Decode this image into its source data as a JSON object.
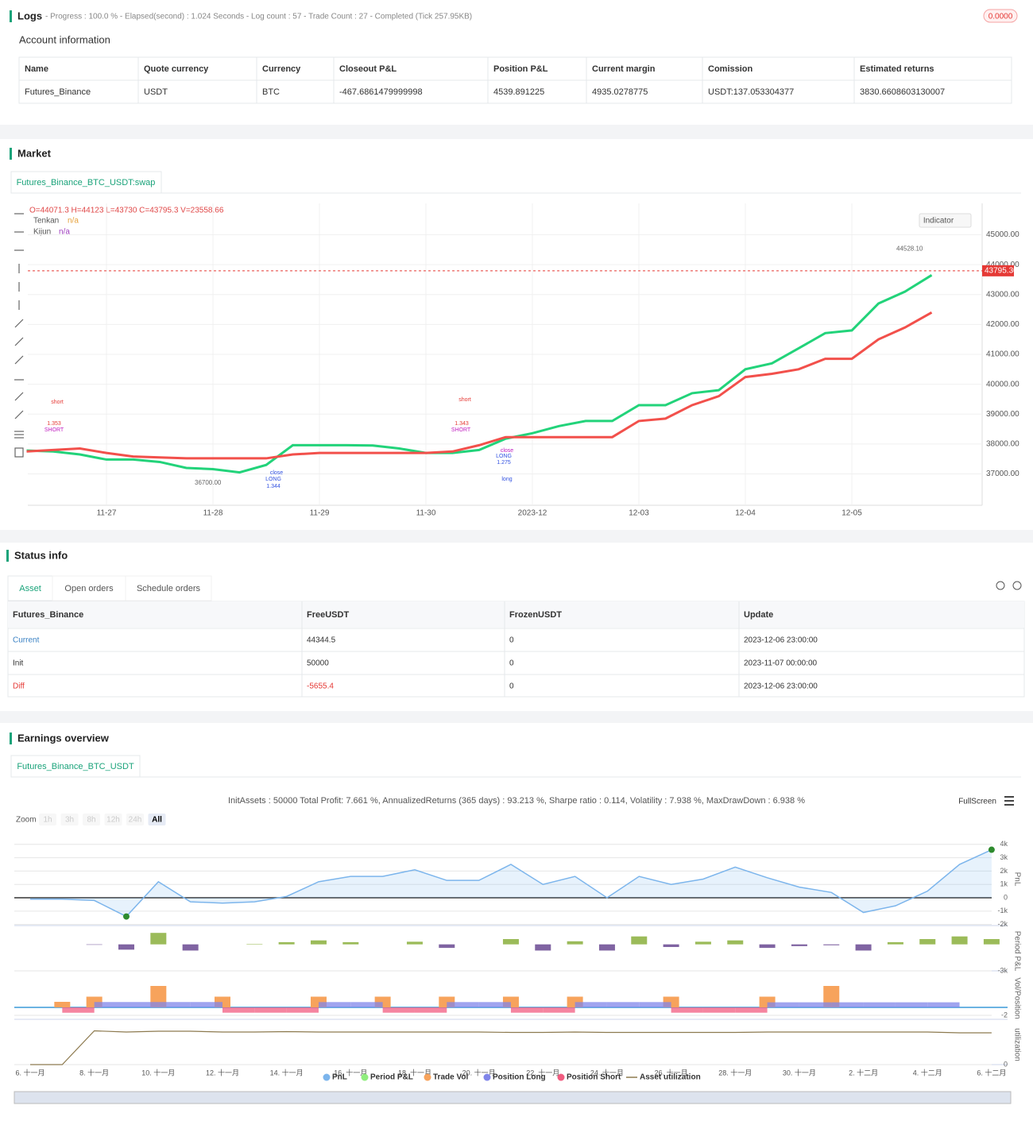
{
  "logs": {
    "title": "Logs",
    "summary": "- Progress : 100.0 % - Elapsed(second) : 1.024 Seconds - Log count : 57 - Trade Count : 27 - Completed (Tick 257.95KB)",
    "badge": "0.0000"
  },
  "account": {
    "title": "Account information",
    "columns": [
      "Name",
      "Quote currency",
      "Currency",
      "Closeout P&L",
      "Position P&L",
      "Current margin",
      "Comission",
      "Estimated returns"
    ],
    "rows": [
      [
        "Futures_Binance",
        "USDT",
        "BTC",
        "-467.6861479999998",
        "4539.891225",
        "4935.0278775",
        "USDT:137.053304377",
        "3830.6608603130007"
      ]
    ]
  },
  "market": {
    "title": "Market",
    "tab": "Futures_Binance_BTC_USDT:swap",
    "indicator_button": "Indicator",
    "ohlcv": "O=44071.3 H=44123 L=43730 C=43795.3 V=23558.66",
    "tenkan_value": "n/a",
    "kijun_value": "n/a",
    "chart": {
      "type": "line",
      "categories": [
        null,
        null,
        null,
        "11-27",
        null,
        null,
        null,
        "11-28",
        null,
        null,
        null,
        "11-29",
        null,
        null,
        null,
        "11-30",
        null,
        null,
        null,
        "2023-12",
        null,
        null,
        null,
        "12-03",
        null,
        null,
        null,
        "12-04",
        null,
        null,
        null,
        "12-05",
        null,
        null,
        null
      ],
      "series": [
        {
          "name": "Tenkan",
          "color": "#22d37a",
          "values": [
            37780,
            37750,
            37650,
            37480,
            37480,
            37400,
            37200,
            37160,
            37050,
            37300,
            37960,
            37960,
            37960,
            37950,
            37850,
            37700,
            37700,
            37800,
            38180,
            38360,
            38600,
            38770,
            38770,
            39300,
            39300,
            39700,
            39800,
            40500,
            40700,
            41200,
            41710,
            41800,
            42700,
            43100,
            43650
          ]
        },
        {
          "name": "Kijun",
          "color": "#f2504b",
          "values": [
            37750,
            37800,
            37850,
            37700,
            37580,
            37550,
            37520,
            37520,
            37520,
            37520,
            37650,
            37700,
            37700,
            37700,
            37700,
            37700,
            37750,
            37960,
            38230,
            38230,
            38230,
            38230,
            38230,
            38770,
            38850,
            39300,
            39600,
            40240,
            40350,
            40500,
            40850,
            40850,
            41500,
            41900,
            42400
          ]
        }
      ],
      "ylim": [
        35950,
        46050
      ],
      "yticks": [
        {
          "value": 45000,
          "label": "45000.00"
        },
        {
          "value": 44000,
          "label": "44000.00"
        },
        {
          "value": 43000,
          "label": "43000.00"
        },
        {
          "value": 42000,
          "label": "42000.00"
        },
        {
          "value": 41000,
          "label": "41000.00"
        },
        {
          "value": 40000,
          "label": "40000.00"
        },
        {
          "value": 39000,
          "label": "39000.00"
        },
        {
          "value": 38000,
          "label": "38000.00"
        },
        {
          "value": 37000,
          "label": "37000.00"
        }
      ],
      "last_price": {
        "value": 43795.3,
        "label": "43795.30"
      },
      "high_label": {
        "value": 44528.1,
        "label": "44528.10"
      },
      "low_label": {
        "value": 36700,
        "label": "36700.00"
      },
      "trade_labels": [
        "short",
        "1.353",
        "SHORT",
        "short",
        "1.343",
        "SHORT",
        "close",
        "LONG",
        "1.344",
        "close",
        "LONG",
        "1.275",
        "long"
      ],
      "grid": true
    }
  },
  "status": {
    "title": "Status info",
    "tabs": [
      "Asset",
      "Open orders",
      "Schedule orders"
    ],
    "columns": [
      "Futures_Binance",
      "FreeUSDT",
      "FrozenUSDT",
      "Update"
    ],
    "rows": [
      [
        "Current",
        "44344.5",
        "0",
        "2023-12-06 23:00:00"
      ],
      [
        "Init",
        "50000",
        "0",
        "2023-11-07 00:00:00"
      ],
      [
        "Diff",
        "-5655.4",
        "0",
        "2023-12-06 23:00:00"
      ]
    ]
  },
  "earnings": {
    "title": "Earnings overview",
    "tab": "Futures_Binance_BTC_USDT",
    "summary": "InitAssets : 50000 Total Profit: 7.661 %, AnnualizedReturns (365 days) : 93.213 %, Sharpe ratio : 0.114, Volatility : 7.938 %, MaxDrawDown : 6.938 %",
    "fullscreen": "FullScreen",
    "zoom_label": "Zoom",
    "zoom_buttons": [
      "1h",
      "3h",
      "8h",
      "12h",
      "24h",
      "All"
    ],
    "chart": {
      "type": "line",
      "categories": [
        "6. 十一月",
        null,
        "8. 十一月",
        null,
        "10. 十一月",
        null,
        "12. 十一月",
        null,
        "14. 十一月",
        null,
        "16. 十一月",
        null,
        "18. 十一月",
        null,
        "20. 十一月",
        null,
        "22. 十一月",
        null,
        "24. 十一月",
        null,
        "26. 十一月",
        null,
        "28. 十一月",
        null,
        "30. 十一月",
        null,
        "2. 十二月",
        null,
        "4. 十二月",
        null,
        "6. 十二月"
      ],
      "panels": [
        {
          "title": "PnL",
          "ylim": [
            -2080,
            4880
          ],
          "yticks": [
            {
              "value": 4000,
              "label": "4k"
            },
            {
              "value": 3000,
              "label": "3k"
            },
            {
              "value": 2000,
              "label": "2k"
            },
            {
              "value": 1000,
              "label": "1k"
            },
            0,
            {
              "value": -1000,
              "label": "-1k"
            },
            {
              "value": -2000,
              "label": "-2k"
            }
          ]
        },
        {
          "title": "Period P&L",
          "ylim": [
            -3000,
            1500
          ],
          "yticks": [
            {
              "value": -3000,
              "label": "-3k"
            }
          ]
        },
        {
          "title": "Vol/Position",
          "ylim": [
            -3,
            7.6
          ],
          "yticks": [
            -2
          ]
        },
        {
          "title": "utilization",
          "ylim": [
            0,
            1
          ],
          "yticks": [
            0
          ]
        }
      ],
      "series": [
        {
          "name": "PnL",
          "color": "#7cb5ec",
          "panel": 0,
          "values": [
            -100,
            -100,
            -200,
            -1400,
            1200,
            -300,
            -400,
            -300,
            100,
            1200,
            1600,
            1600,
            2100,
            1300,
            1300,
            2500,
            1000,
            1600,
            0,
            1600,
            1000,
            1400,
            2300,
            1500,
            800,
            400,
            -1100,
            -600,
            500,
            2500,
            3600
          ]
        },
        {
          "name": "Period P&L",
          "color": "#90ed7d",
          "positive_color": "#9bbb59",
          "negative_color": "#8064a2",
          "panel": 1,
          "values": [
            0,
            0,
            -50,
            -600,
            1300,
            -700,
            0,
            50,
            250,
            450,
            250,
            0,
            300,
            -400,
            0,
            600,
            -700,
            350,
            -700,
            900,
            -300,
            300,
            450,
            -400,
            -200,
            -100,
            -700,
            250,
            600,
            900,
            600
          ]
        },
        {
          "name": "Trade Vol",
          "color": "#f7a35c",
          "panel": 2,
          "values": [
            0,
            1.4,
            2.7,
            0,
            5.4,
            0,
            2.7,
            0,
            0,
            2.7,
            0,
            2.7,
            0,
            2.7,
            0,
            2.7,
            0,
            2.7,
            0,
            0,
            2.7,
            0,
            0,
            2.7,
            0,
            5.4,
            0,
            0,
            0,
            0,
            0
          ]
        },
        {
          "name": "Position Long",
          "color": "#8085e9",
          "panel": 2,
          "values": [
            0,
            0,
            1.35,
            1.35,
            1.35,
            1.35,
            0,
            0,
            0,
            1.34,
            1.34,
            0,
            0,
            1.34,
            1.34,
            0,
            0,
            1.34,
            1.34,
            1.34,
            0,
            0,
            0,
            1.28,
            1.28,
            1.28,
            1.28,
            1.28,
            1.28,
            0,
            0
          ]
        },
        {
          "name": "Position Short",
          "color": "#f15c80",
          "panel": 2,
          "values": [
            0,
            -1.35,
            0,
            0,
            0,
            0,
            -1.34,
            -1.34,
            -1.34,
            0,
            0,
            -1.34,
            -1.34,
            0,
            0,
            -1.34,
            -1.34,
            0,
            0,
            0,
            -1.34,
            -1.34,
            -1.34,
            0,
            0,
            0,
            0,
            0,
            0,
            0,
            0
          ]
        },
        {
          "name": "Asset utilization",
          "color": "#8d7a4f",
          "panel": 3,
          "values": [
            0,
            0,
            0.85,
            0.82,
            0.84,
            0.84,
            0.82,
            0.82,
            0.83,
            0.82,
            0.82,
            0.82,
            0.82,
            0.82,
            0.82,
            0.81,
            0.81,
            0.82,
            0.81,
            0.81,
            0.81,
            0.81,
            0.81,
            0.82,
            0.82,
            0.82,
            0.82,
            0.82,
            0.82,
            0.8,
            0.8
          ]
        }
      ]
    }
  }
}
